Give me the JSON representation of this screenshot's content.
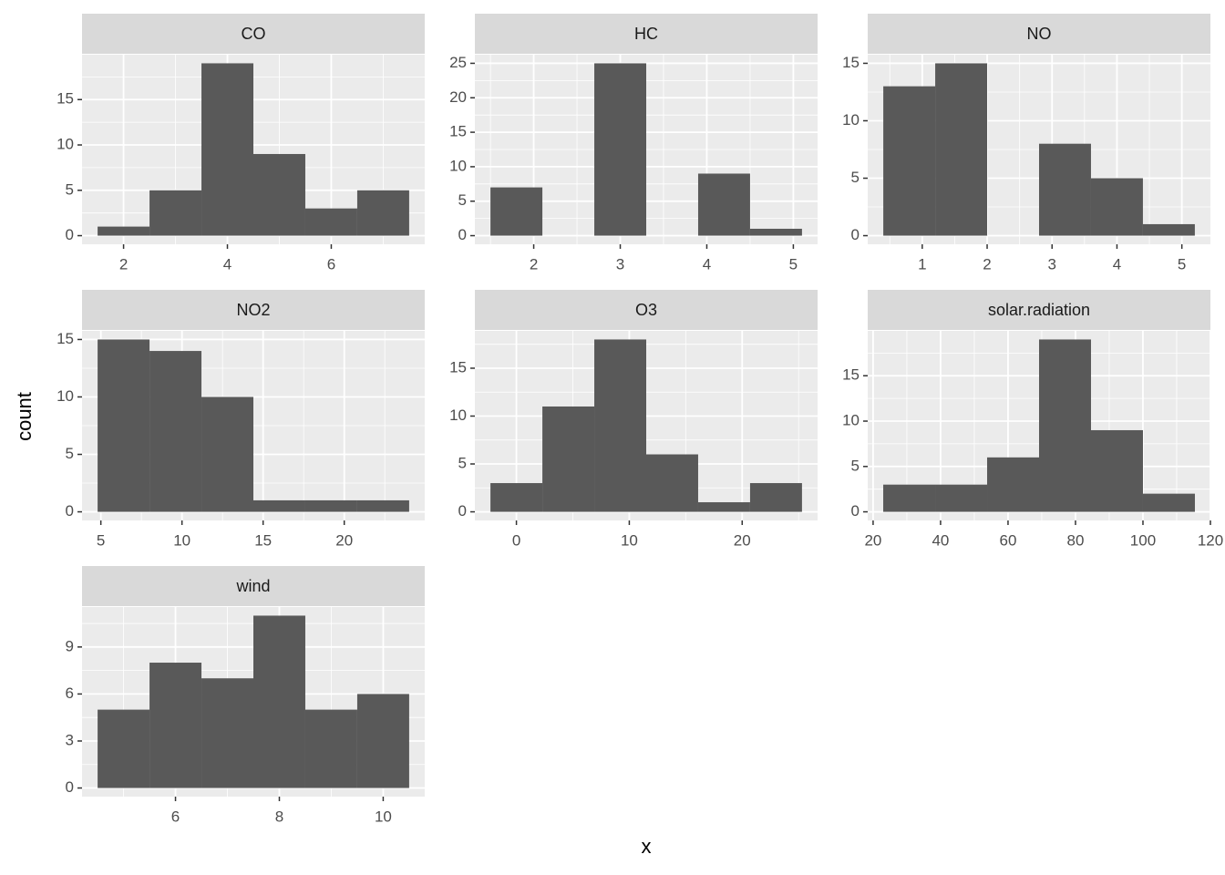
{
  "x_label": "x",
  "y_label": "count",
  "chart_data": [
    {
      "type": "histogram",
      "title": "CO",
      "bins": [
        1.5,
        2.5,
        3.5,
        4.5,
        5.5,
        6.5,
        7.5
      ],
      "values": [
        1,
        5,
        19,
        9,
        3,
        5
      ],
      "color": "#595959",
      "xlim": [
        1.2,
        7.8
      ],
      "xticks": [
        2,
        4,
        6
      ],
      "ylim": [
        -0.95,
        19.95
      ],
      "yticks": [
        0,
        5,
        10,
        15
      ],
      "grid": true
    },
    {
      "type": "histogram",
      "title": "HC",
      "bins": [
        1.5,
        2.1,
        2.7,
        3.3,
        3.9,
        4.5,
        5.1
      ],
      "values": [
        7,
        0,
        25,
        0,
        9,
        1
      ],
      "color": "#595959",
      "xlim": [
        1.32,
        5.28
      ],
      "xticks": [
        2,
        3,
        4,
        5
      ],
      "ylim": [
        -1.25,
        26.25
      ],
      "yticks": [
        0,
        5,
        10,
        15,
        20,
        25
      ],
      "grid": true
    },
    {
      "type": "histogram",
      "title": "NO",
      "bins": [
        0.4,
        1.2,
        2.0,
        2.8,
        3.6,
        4.4,
        5.2
      ],
      "values": [
        13,
        15,
        0,
        8,
        5,
        1
      ],
      "color": "#595959",
      "xlim": [
        0.16,
        5.44
      ],
      "xticks": [
        1,
        2,
        3,
        4,
        5
      ],
      "ylim": [
        -0.75,
        15.75
      ],
      "yticks": [
        0,
        5,
        10,
        15
      ],
      "grid": true
    },
    {
      "type": "histogram",
      "title": "NO2",
      "bins": [
        4.8,
        8.0,
        11.2,
        14.4,
        17.6,
        20.8,
        24.0
      ],
      "values": [
        15,
        14,
        10,
        1,
        1,
        1
      ],
      "color": "#595959",
      "xlim": [
        3.84,
        24.96
      ],
      "xticks": [
        5,
        10,
        15,
        20
      ],
      "ylim": [
        -0.75,
        15.75
      ],
      "yticks": [
        0,
        5,
        10,
        15
      ],
      "grid": true
    },
    {
      "type": "histogram",
      "title": "O3",
      "bins": [
        -2.3,
        2.3,
        6.9,
        11.5,
        16.1,
        20.7,
        25.3
      ],
      "values": [
        3,
        11,
        18,
        6,
        1,
        3
      ],
      "color": "#595959",
      "xlim": [
        -3.68,
        26.68
      ],
      "xticks": [
        0,
        10,
        20
      ],
      "ylim": [
        -0.9,
        18.9
      ],
      "yticks": [
        0,
        5,
        10,
        15
      ],
      "grid": true
    },
    {
      "type": "histogram",
      "title": "solar.radiation",
      "bins": [
        23,
        38.4,
        53.8,
        69.2,
        84.6,
        100,
        115.4
      ],
      "values": [
        3,
        3,
        6,
        19,
        9,
        2
      ],
      "color": "#595959",
      "xlim": [
        18.4,
        120.0
      ],
      "xticks": [
        20,
        40,
        60,
        80,
        100,
        120
      ],
      "ylim": [
        -0.95,
        19.95
      ],
      "yticks": [
        0,
        5,
        10,
        15
      ],
      "grid": true
    },
    {
      "type": "histogram",
      "title": "wind",
      "bins": [
        4.5,
        5.5,
        6.5,
        7.5,
        8.5,
        9.5,
        10.5
      ],
      "values": [
        5,
        8,
        7,
        11,
        5,
        6
      ],
      "color": "#595959",
      "xlim": [
        4.2,
        10.8
      ],
      "xticks": [
        6,
        8,
        10
      ],
      "ylim": [
        -0.55,
        11.55
      ],
      "yticks": [
        0,
        3,
        6,
        9
      ],
      "grid": true
    }
  ]
}
